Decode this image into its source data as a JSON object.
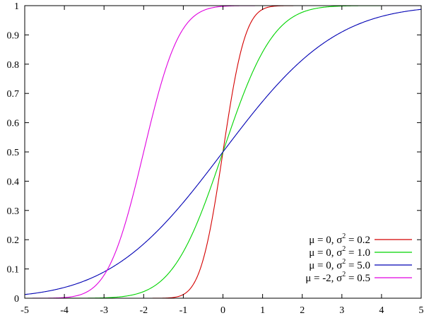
{
  "chart_data": {
    "type": "line",
    "title": "",
    "xlabel": "",
    "ylabel": "",
    "xlim": [
      -5,
      5
    ],
    "ylim": [
      0,
      1
    ],
    "x_ticks": [
      -5,
      -4,
      -3,
      -2,
      -1,
      0,
      1,
      2,
      3,
      4,
      5
    ],
    "y_ticks": [
      0,
      0.1,
      0.2,
      0.3,
      0.4,
      0.5,
      0.6,
      0.7,
      0.8,
      0.9,
      1
    ],
    "x_tick_labels": [
      "-5",
      "-4",
      "-3",
      "-2",
      "-1",
      "0",
      "1",
      "2",
      "3",
      "4",
      "5"
    ],
    "y_tick_labels": [
      "0",
      "0.1",
      "0.2",
      "0.3",
      "0.4",
      "0.5",
      "0.6",
      "0.7",
      "0.8",
      "0.9",
      "1"
    ],
    "grid": false,
    "legend_position": "bottom-right",
    "series": [
      {
        "name": "μ = 0, σ² = 0.2",
        "legend": {
          "mu": "μ =  0, σ",
          "sup": "2",
          "rest": " = 0.2"
        },
        "color": "#d40000",
        "mu": 0,
        "variance": 0.2,
        "x": [
          -1.6,
          -1.4,
          -1.2,
          -1.0,
          -0.8,
          -0.6,
          -0.4,
          -0.2,
          0,
          0.2,
          0.4,
          0.6,
          0.8,
          1.0,
          1.2,
          1.4,
          1.6
        ],
        "y": [
          0.0002,
          0.0009,
          0.0036,
          0.0127,
          0.0368,
          0.0899,
          0.1855,
          0.3274,
          0.5,
          0.6726,
          0.8145,
          0.9101,
          0.9632,
          0.9873,
          0.9964,
          0.9991,
          0.9998
        ]
      },
      {
        "name": "μ = 0, σ² = 1.0",
        "legend": {
          "mu": "μ =  0, σ",
          "sup": "2",
          "rest": " = 1.0"
        },
        "color": "#00d400",
        "mu": 0,
        "variance": 1.0,
        "x": [
          -3.0,
          -2.5,
          -2.0,
          -1.5,
          -1.0,
          -0.5,
          0,
          0.5,
          1.0,
          1.5,
          2.0,
          2.5,
          3.0
        ],
        "y": [
          0.0013,
          0.0062,
          0.0228,
          0.0668,
          0.1587,
          0.3085,
          0.5,
          0.6915,
          0.8413,
          0.9332,
          0.9772,
          0.9938,
          0.9987
        ]
      },
      {
        "name": "μ = 0, σ² = 5.0",
        "legend": {
          "mu": "μ =  0, σ",
          "sup": "2",
          "rest": " = 5.0"
        },
        "color": "#0000b4",
        "mu": 0,
        "variance": 5.0,
        "x": [
          -5,
          -4,
          -3,
          -2,
          -1,
          0,
          1,
          2,
          3,
          4,
          5
        ],
        "y": [
          0.0127,
          0.0368,
          0.0899,
          0.1855,
          0.3274,
          0.5,
          0.6726,
          0.8145,
          0.9101,
          0.9632,
          0.9873
        ]
      },
      {
        "name": "μ = -2, σ² = 0.5",
        "legend": {
          "mu": "μ = -2, σ",
          "sup": "2",
          "rest": " = 0.5"
        },
        "color": "#e000e0",
        "mu": -2,
        "variance": 0.5,
        "x": [
          -4.0,
          -3.5,
          -3.0,
          -2.5,
          -2.0,
          -1.5,
          -1.0,
          -0.5,
          0
        ],
        "y": [
          0.0023,
          0.0169,
          0.0786,
          0.2398,
          0.5,
          0.7602,
          0.9214,
          0.9831,
          0.9977
        ]
      }
    ]
  }
}
